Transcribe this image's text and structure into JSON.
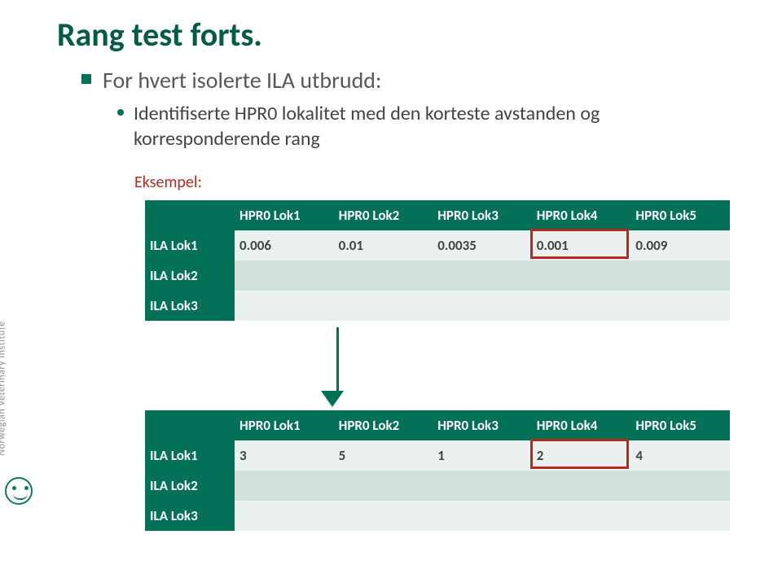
{
  "title": "Rang test forts.",
  "bullet1": "For hvert isolerte ILA utbrudd:",
  "bullet2": "Identifiserte HPR0 lokalitet med den korteste avstanden og korresponderende rang",
  "eksempel_label": "Eksempel:",
  "logo_text": "Norwegian Veterinary Institute",
  "tables": {
    "top": {
      "headers": [
        "HPR0 Lok1",
        "HPR0 Lok2",
        "HPR0 Lok3",
        "HPR0 Lok4",
        "HPR0 Lok5"
      ],
      "rows": [
        {
          "label": "ILA Lok1",
          "cells": [
            "0.006",
            "0.01",
            "0.0035",
            "0.001",
            "0.009"
          ]
        },
        {
          "label": "ILA Lok2",
          "cells": [
            "",
            "",
            "",
            "",
            ""
          ]
        },
        {
          "label": "ILA Lok3",
          "cells": [
            "",
            "",
            "",
            "",
            ""
          ]
        }
      ],
      "highlight": {
        "row": 0,
        "col": 3
      }
    },
    "bottom": {
      "headers": [
        "HPR0 Lok1",
        "HPR0 Lok2",
        "HPR0 Lok3",
        "HPR0 Lok4",
        "HPR0 Lok5"
      ],
      "rows": [
        {
          "label": "ILA Lok1",
          "cells": [
            "3",
            "5",
            "1",
            "2",
            "4"
          ]
        },
        {
          "label": "ILA Lok2",
          "cells": [
            "",
            "",
            "",
            "",
            ""
          ]
        },
        {
          "label": "ILA Lok3",
          "cells": [
            "",
            "",
            "",
            "",
            ""
          ]
        }
      ],
      "highlight": {
        "row": 0,
        "col": 3
      }
    }
  },
  "colors": {
    "brand_green": "#037157",
    "title_green": "#045b47",
    "text_gray": "#3f4640",
    "red": "#b82a1f",
    "cell_light": "#eaf1ee",
    "cell_dark": "#d1e1da"
  },
  "fonts": {
    "title_pt": 40,
    "bullet1_pt": 28,
    "bullet2_pt": 24,
    "eksempel_pt": 20,
    "table_pt": 17
  }
}
